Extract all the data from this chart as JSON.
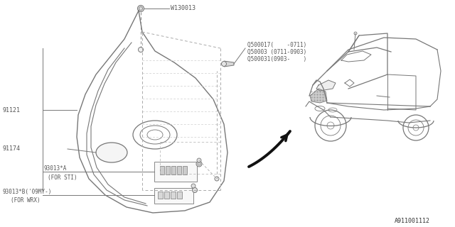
{
  "bg_color": "#ffffff",
  "lc": "#777777",
  "lc_dark": "#444444",
  "tc": "#555555",
  "diagram_id": "A911001112",
  "label_W130013": "W130013",
  "label_Q1": "Q500017(    -0711)",
  "label_Q2": "Q50003 (0711-0903)",
  "label_Q3": "Q500031(0903-    )",
  "label_91121": "91121",
  "label_91174": "91174",
  "label_93013A_1": "93013*A",
  "label_93013A_2": "(FOR STI)",
  "label_93013B_1": "93013*B('09MY-)",
  "label_93013B_2": "(FOR WRX)"
}
